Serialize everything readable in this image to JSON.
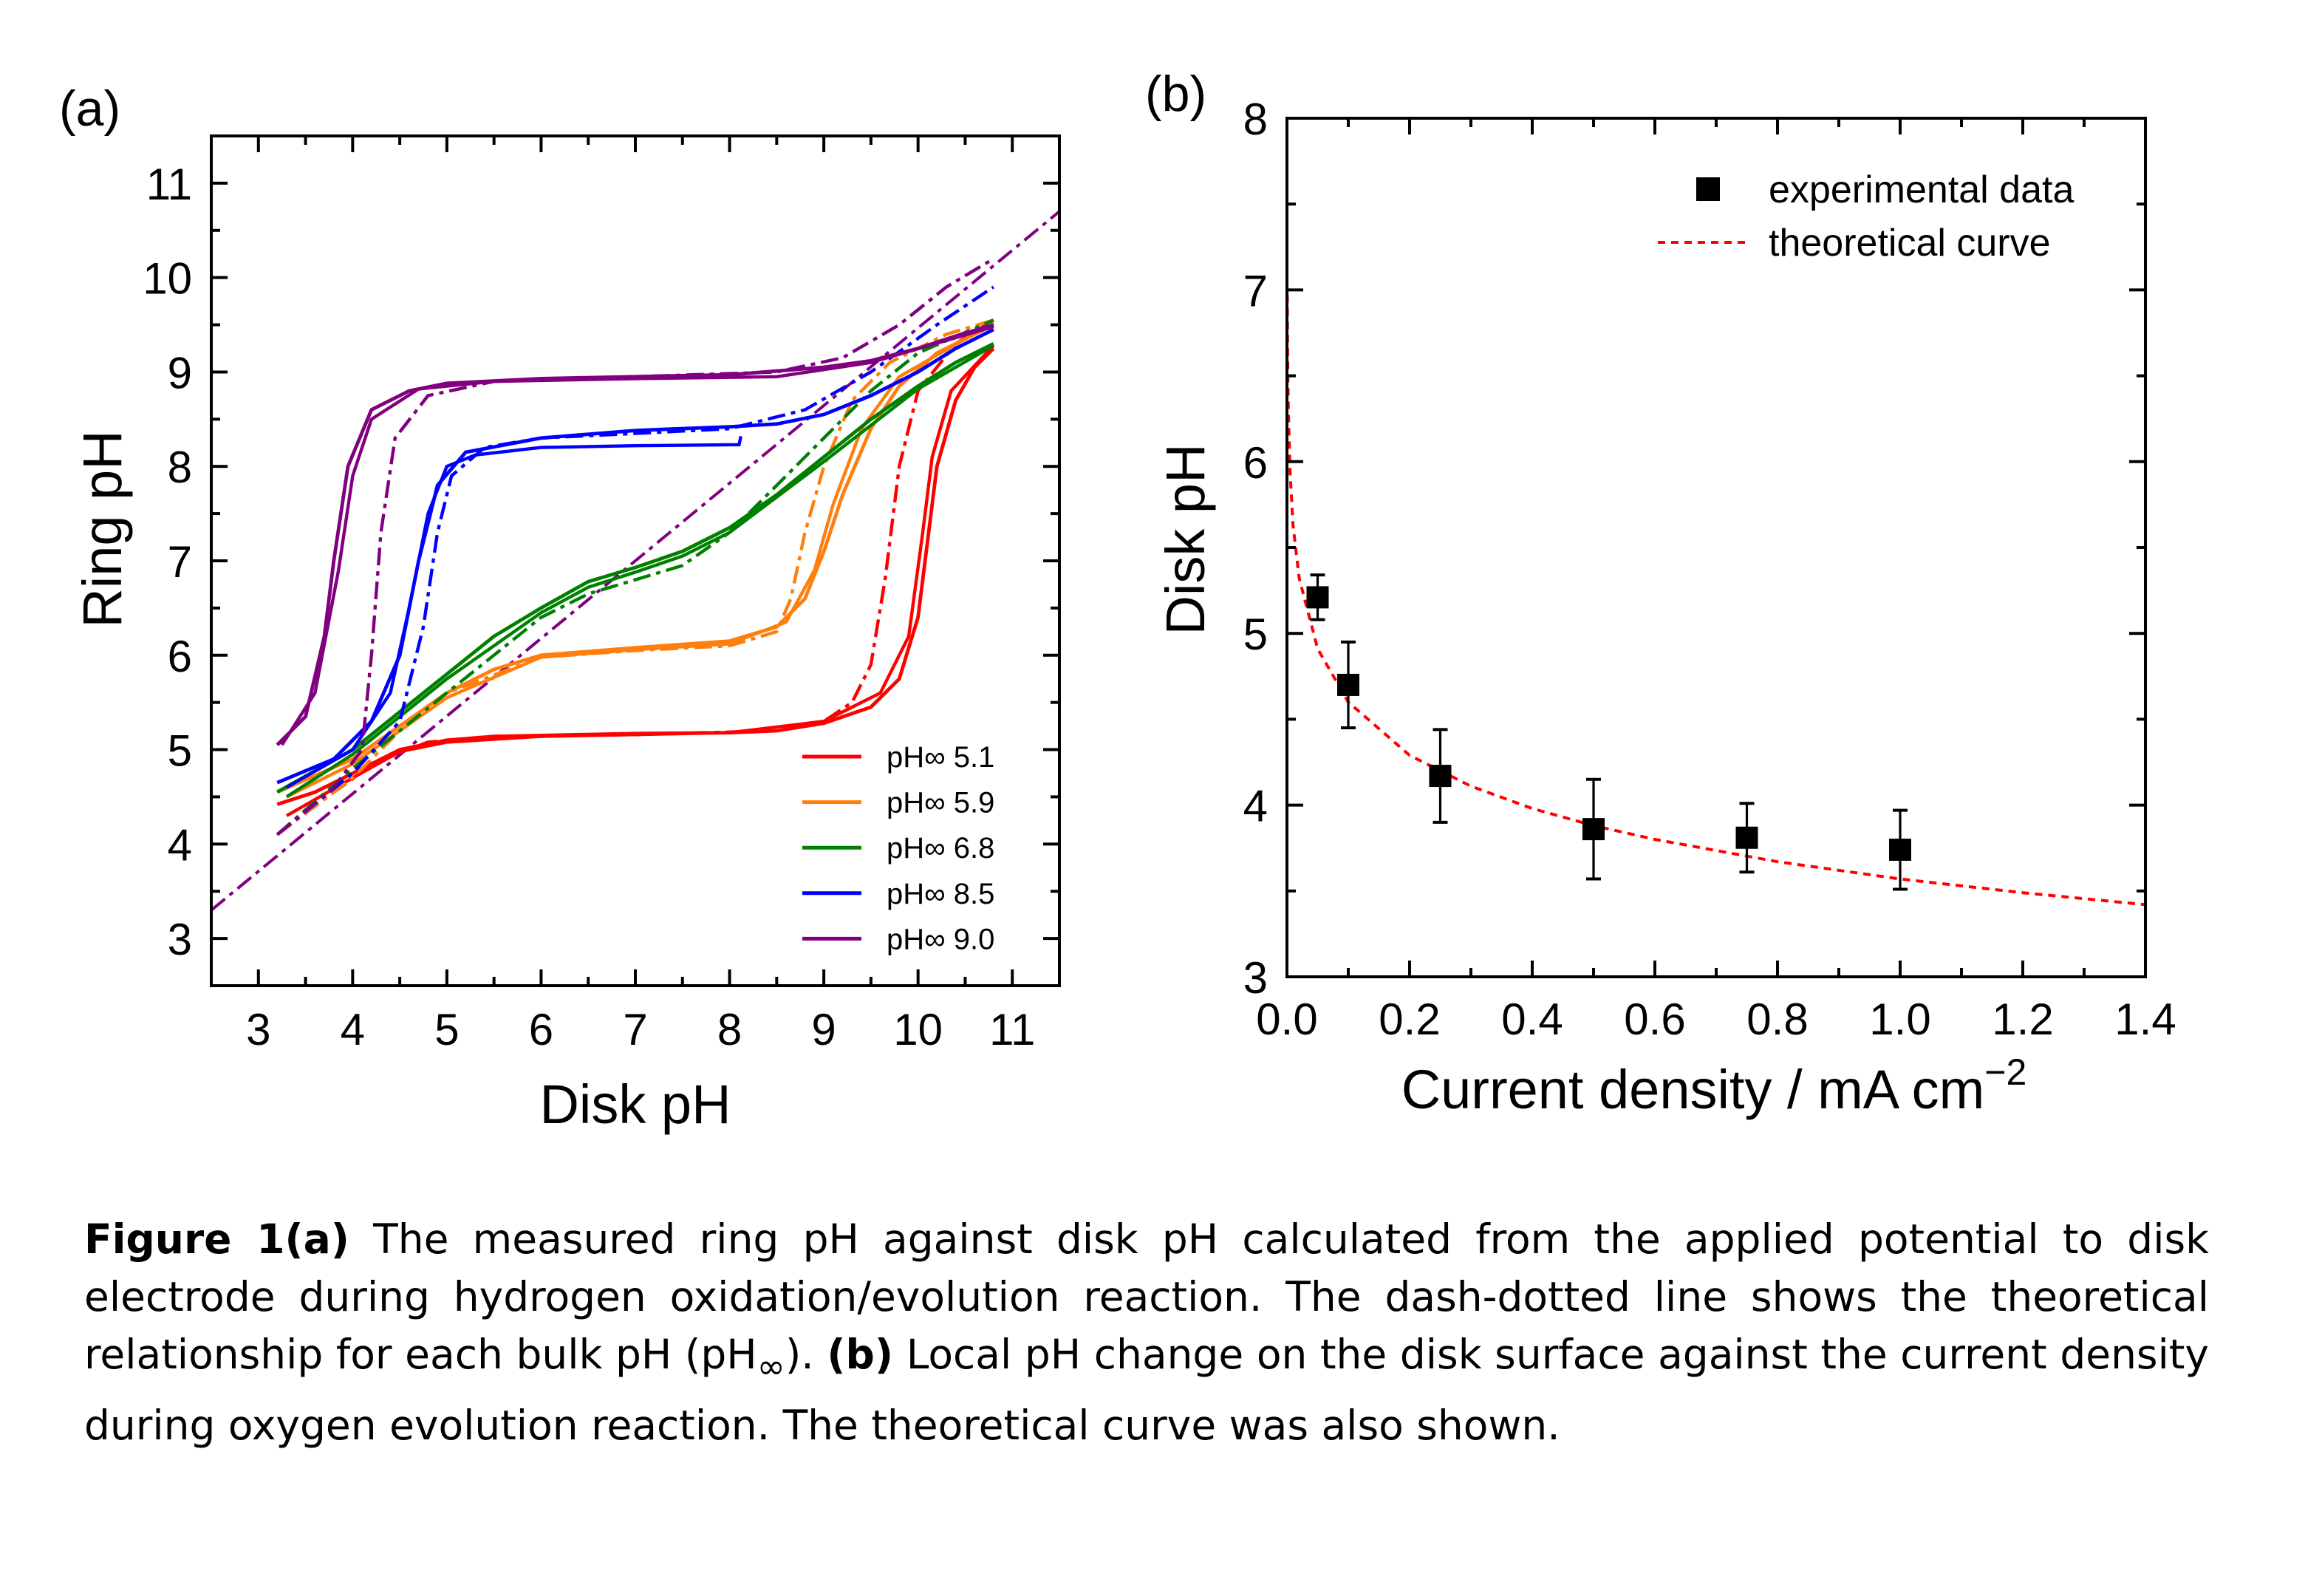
{
  "chart_data": [
    {
      "type": "line",
      "panel_label": "(a)",
      "xlabel": "Disk pH",
      "ylabel": "Ring pH",
      "xlim": [
        2.5,
        11.5
      ],
      "ylim": [
        2.5,
        11.5
      ],
      "xticks": [
        3,
        4,
        5,
        6,
        7,
        8,
        9,
        10,
        11
      ],
      "yticks": [
        3,
        4,
        5,
        6,
        7,
        8,
        9,
        10,
        11
      ],
      "grid": false,
      "legend_position": "bottom-right",
      "series": [
        {
          "name": "pH∞ 5.1",
          "color": "#ff0000",
          "measured": [
            [
              3.2,
              4.42
            ],
            [
              3.6,
              4.55
            ],
            [
              4,
              4.75
            ],
            [
              4.5,
              5.0
            ],
            [
              5,
              5.1
            ],
            [
              5.5,
              5.14
            ],
            [
              6,
              5.15
            ],
            [
              7,
              5.17
            ],
            [
              8,
              5.18
            ],
            [
              8.5,
              5.2
            ],
            [
              9,
              5.28
            ],
            [
              9.5,
              5.45
            ],
            [
              9.8,
              5.75
            ],
            [
              10,
              6.4
            ],
            [
              10.1,
              7.2
            ],
            [
              10.2,
              8.0
            ],
            [
              10.4,
              8.7
            ],
            [
              10.6,
              9.05
            ],
            [
              10.8,
              9.25
            ]
          ],
          "measured_return": [
            [
              3.3,
              4.3
            ],
            [
              4,
              4.7
            ],
            [
              4.5,
              4.98
            ],
            [
              5,
              5.08
            ],
            [
              6,
              5.14
            ],
            [
              7,
              5.16
            ],
            [
              8,
              5.18
            ],
            [
              9,
              5.3
            ],
            [
              9.6,
              5.6
            ],
            [
              9.9,
              6.2
            ],
            [
              10.05,
              7.3
            ],
            [
              10.15,
              8.1
            ],
            [
              10.35,
              8.8
            ],
            [
              10.8,
              9.28
            ]
          ],
          "theoretical": [
            [
              3.2,
              4.1
            ],
            [
              3.8,
              4.55
            ],
            [
              4.3,
              4.9
            ],
            [
              4.8,
              5.08
            ],
            [
              5.5,
              5.14
            ],
            [
              7,
              5.16
            ],
            [
              8.5,
              5.2
            ],
            [
              9,
              5.3
            ],
            [
              9.3,
              5.5
            ],
            [
              9.5,
              5.9
            ],
            [
              9.65,
              6.8
            ],
            [
              9.8,
              8.0
            ],
            [
              10,
              8.8
            ],
            [
              10.4,
              9.3
            ],
            [
              10.8,
              9.55
            ]
          ]
        },
        {
          "name": "pH∞ 5.9",
          "color": "#ff7f0e",
          "measured": [
            [
              3.2,
              4.55
            ],
            [
              4,
              4.9
            ],
            [
              4.5,
              5.25
            ],
            [
              5,
              5.6
            ],
            [
              5.5,
              5.85
            ],
            [
              6,
              6.0
            ],
            [
              7,
              6.08
            ],
            [
              8,
              6.15
            ],
            [
              8.5,
              6.3
            ],
            [
              8.8,
              6.6
            ],
            [
              9,
              7.1
            ],
            [
              9.2,
              7.7
            ],
            [
              9.5,
              8.4
            ],
            [
              9.8,
              8.85
            ],
            [
              10.2,
              9.2
            ],
            [
              10.8,
              9.5
            ]
          ],
          "measured_return": [
            [
              3.3,
              4.5
            ],
            [
              4,
              4.85
            ],
            [
              5,
              5.55
            ],
            [
              6,
              5.98
            ],
            [
              7,
              6.06
            ],
            [
              8,
              6.12
            ],
            [
              8.6,
              6.35
            ],
            [
              8.9,
              6.9
            ],
            [
              9.1,
              7.6
            ],
            [
              9.4,
              8.4
            ],
            [
              9.8,
              8.95
            ],
            [
              10.8,
              9.52
            ]
          ],
          "theoretical": [
            [
              3.2,
              4.1
            ],
            [
              4,
              4.7
            ],
            [
              4.5,
              5.2
            ],
            [
              5,
              5.6
            ],
            [
              6,
              5.98
            ],
            [
              7,
              6.05
            ],
            [
              8,
              6.1
            ],
            [
              8.5,
              6.25
            ],
            [
              8.65,
              6.6
            ],
            [
              8.8,
              7.3
            ],
            [
              9,
              8.0
            ],
            [
              9.3,
              8.7
            ],
            [
              9.7,
              9.1
            ],
            [
              10.3,
              9.4
            ],
            [
              10.8,
              9.55
            ]
          ]
        },
        {
          "name": "pH∞ 6.8",
          "color": "#008000",
          "measured": [
            [
              3.2,
              4.55
            ],
            [
              4,
              5.0
            ],
            [
              4.5,
              5.4
            ],
            [
              5,
              5.8
            ],
            [
              5.5,
              6.2
            ],
            [
              6,
              6.5
            ],
            [
              6.5,
              6.78
            ],
            [
              7,
              6.93
            ],
            [
              7.5,
              7.1
            ],
            [
              8,
              7.35
            ],
            [
              8.5,
              7.7
            ],
            [
              9,
              8.1
            ],
            [
              9.5,
              8.5
            ],
            [
              10,
              8.85
            ],
            [
              10.4,
              9.1
            ],
            [
              10.8,
              9.3
            ]
          ],
          "measured_return": [
            [
              3.3,
              4.5
            ],
            [
              4,
              4.95
            ],
            [
              5,
              5.75
            ],
            [
              6,
              6.45
            ],
            [
              6.5,
              6.72
            ],
            [
              7,
              6.88
            ],
            [
              7.5,
              7.05
            ],
            [
              8,
              7.3
            ],
            [
              9,
              8.05
            ],
            [
              10,
              8.82
            ],
            [
              10.8,
              9.28
            ]
          ],
          "theoretical": [
            [
              3.2,
              4.1
            ],
            [
              4,
              4.8
            ],
            [
              5,
              5.6
            ],
            [
              6,
              6.4
            ],
            [
              6.5,
              6.65
            ],
            [
              7,
              6.8
            ],
            [
              7.5,
              6.95
            ],
            [
              8,
              7.3
            ],
            [
              8.5,
              7.8
            ],
            [
              9,
              8.3
            ],
            [
              9.5,
              8.8
            ],
            [
              10,
              9.2
            ],
            [
              10.8,
              9.55
            ]
          ]
        },
        {
          "name": "pH∞ 8.5",
          "color": "#0000ff",
          "measured": [
            [
              3.2,
              4.65
            ],
            [
              3.8,
              4.9
            ],
            [
              4.2,
              5.3
            ],
            [
              4.5,
              6.0
            ],
            [
              4.7,
              7.0
            ],
            [
              4.9,
              7.8
            ],
            [
              5.2,
              8.15
            ],
            [
              6,
              8.3
            ],
            [
              7,
              8.38
            ],
            [
              8,
              8.42
            ],
            [
              8.5,
              8.45
            ],
            [
              9,
              8.55
            ],
            [
              9.5,
              8.75
            ],
            [
              10,
              9.0
            ],
            [
              10.4,
              9.25
            ],
            [
              10.8,
              9.45
            ]
          ],
          "measured_return": [
            [
              3.3,
              4.6
            ],
            [
              4,
              5.0
            ],
            [
              4.4,
              5.6
            ],
            [
              4.6,
              6.5
            ],
            [
              4.8,
              7.5
            ],
            [
              5,
              8.0
            ],
            [
              5.3,
              8.12
            ],
            [
              6,
              8.2
            ],
            [
              7,
              8.22
            ],
            [
              8.1,
              8.23
            ],
            [
              8.12,
              8.32
            ]
          ],
          "theoretical": [
            [
              3.2,
              4.1
            ],
            [
              4,
              4.75
            ],
            [
              4.5,
              5.3
            ],
            [
              4.75,
              6.3
            ],
            [
              4.9,
              7.3
            ],
            [
              5.05,
              7.9
            ],
            [
              5.4,
              8.2
            ],
            [
              6,
              8.3
            ],
            [
              7,
              8.35
            ],
            [
              8,
              8.4
            ],
            [
              8.8,
              8.6
            ],
            [
              9.5,
              9.0
            ],
            [
              10.2,
              9.5
            ],
            [
              10.8,
              9.9
            ]
          ]
        },
        {
          "name": "pH∞ 9.0",
          "color": "#800080",
          "measured": [
            [
              3.2,
              5.05
            ],
            [
              3.5,
              5.35
            ],
            [
              3.7,
              6.2
            ],
            [
              3.8,
              7.0
            ],
            [
              3.95,
              8.0
            ],
            [
              4.2,
              8.6
            ],
            [
              4.6,
              8.8
            ],
            [
              5,
              8.88
            ],
            [
              6,
              8.93
            ],
            [
              7,
              8.95
            ],
            [
              8,
              8.97
            ],
            [
              9,
              9.05
            ],
            [
              9.5,
              9.12
            ],
            [
              10,
              9.25
            ],
            [
              10.4,
              9.38
            ],
            [
              10.8,
              9.5
            ]
          ],
          "measured_return": [
            [
              3.25,
              5.05
            ],
            [
              3.6,
              5.6
            ],
            [
              3.85,
              6.9
            ],
            [
              4.0,
              7.9
            ],
            [
              4.2,
              8.5
            ],
            [
              4.7,
              8.82
            ],
            [
              5.5,
              8.9
            ],
            [
              7,
              8.93
            ],
            [
              8.5,
              8.95
            ],
            [
              9.5,
              9.1
            ],
            [
              10.8,
              9.48
            ]
          ],
          "theoretical": [
            [
              3.2,
              4.1
            ],
            [
              3.8,
              4.6
            ],
            [
              4.1,
              5.0
            ],
            [
              4.2,
              6.0
            ],
            [
              4.3,
              7.3
            ],
            [
              4.45,
              8.3
            ],
            [
              4.8,
              8.75
            ],
            [
              5.5,
              8.9
            ],
            [
              7,
              8.95
            ],
            [
              8.5,
              9.0
            ],
            [
              9.2,
              9.15
            ],
            [
              9.8,
              9.5
            ],
            [
              10.3,
              9.9
            ],
            [
              10.8,
              10.2
            ]
          ]
        }
      ],
      "theoretical_limit": [
        [
          2.5,
          3.3
        ],
        [
          11.5,
          10.7
        ]
      ]
    },
    {
      "type": "scatter",
      "panel_label": "(b)",
      "xlabel": "Current density / mA cm",
      "xlabel_superscript": "−2",
      "ylabel": "Disk pH",
      "xlim": [
        0.0,
        1.4
      ],
      "ylim": [
        3,
        8
      ],
      "xticks": [
        "0.0",
        "0.2",
        "0.4",
        "0.6",
        "0.8",
        "1.0",
        "1.2",
        "1.4"
      ],
      "yticks": [
        "3",
        "4",
        "5",
        "6",
        "7",
        "8"
      ],
      "grid": false,
      "legend_position": "top-right",
      "series": [
        {
          "name": "experimental data",
          "color": "#000000",
          "marker": "square",
          "x": [
            0.05,
            0.1,
            0.25,
            0.5,
            0.75,
            1.0
          ],
          "y": [
            5.21,
            4.7,
            4.17,
            3.86,
            3.81,
            3.74
          ],
          "error": [
            0.13,
            0.25,
            0.27,
            0.29,
            0.2,
            0.23
          ]
        },
        {
          "name": "theoretical curve",
          "color": "#ff0000",
          "style": "dashed",
          "x": [
            0.0005,
            0.001,
            0.002,
            0.005,
            0.01,
            0.02,
            0.05,
            0.1,
            0.2,
            0.3,
            0.4,
            0.5,
            0.6,
            0.8,
            1.0,
            1.2,
            1.4
          ],
          "y": [
            6.97,
            6.66,
            6.35,
            5.94,
            5.63,
            5.32,
            4.91,
            4.6,
            4.29,
            4.11,
            3.98,
            3.88,
            3.8,
            3.67,
            3.57,
            3.49,
            3.42
          ]
        }
      ]
    }
  ],
  "caption": {
    "fig_label": "Figure 1(a)",
    "text_a": " The measured ring pH against disk pH calculated from the applied potential to disk electrode during hydrogen oxidation/evolution reaction. The dash-dotted line shows the theoretical relationship for each bulk pH (pH",
    "subscript": "∞",
    "text_a_end": "). ",
    "b_label": "(b)",
    "text_b": " Local pH change on the disk surface against the current density during oxygen evolution reaction. The theoretical curve was also shown."
  }
}
